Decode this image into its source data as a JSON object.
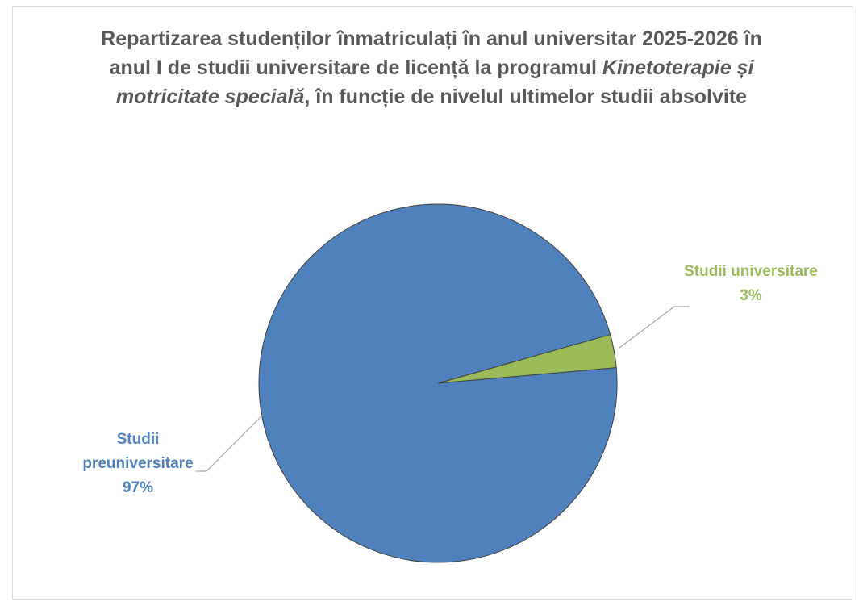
{
  "chart_data": {
    "type": "pie",
    "title": [
      "Repartizarea studenților înmatriculați în anul universitar 2025-2026 în anul I de studii universitare de licență la programul ",
      "Kinetoterapie și motricitate specială",
      ", în funcție de nivelul ultimelor studii absolvite"
    ],
    "title_italic_part": 1,
    "categories": [
      "Studii preuniversitare",
      "Studii universitare"
    ],
    "values": [
      97,
      3
    ],
    "value_labels": [
      "97%",
      "3%"
    ],
    "colors": [
      "#4f81bd",
      "#9bbb59"
    ],
    "start_angle": 85
  }
}
